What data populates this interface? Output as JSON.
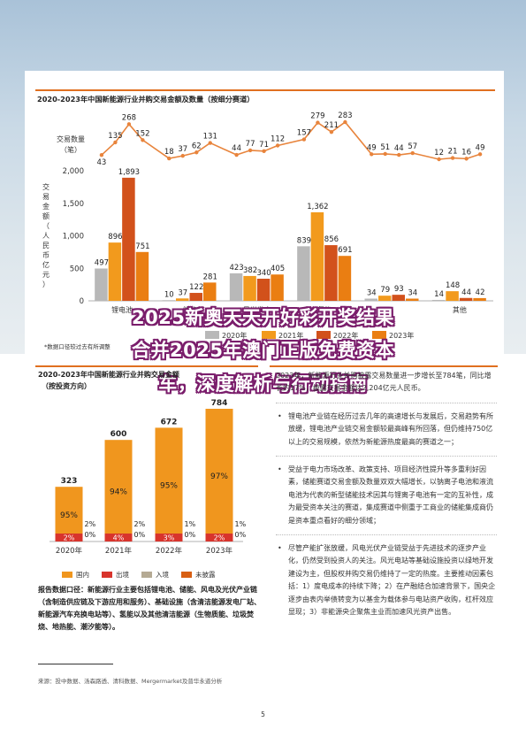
{
  "page": {
    "overlay_line1": "2025新奥天天开好彩开奖结果",
    "overlay_line2": "合并2025年澳门正版免费资本",
    "overlay_line3": "车，深度解析与行动指南",
    "page_number": "5"
  },
  "colors": {
    "grey": "#b8b8b8",
    "orange": "#f29a1d",
    "red": "#d2511b",
    "dark_orange": "#ea7e12",
    "bar_orange": "#f0951e",
    "domestic_orange": "#f0961e",
    "outbound_red": "#d8342c",
    "inbound_grey": "#b5aa94",
    "undisclosed_orange": "#d85f13",
    "count_line": "#e8843c"
  },
  "chart_data": [
    {
      "type": "bar",
      "title": "2020-2023年中国新能源行业并购交易金额及数量（按细分赛道）",
      "count_label": "交易数量（笔）",
      "ylabel": "交易金额（人民币亿元）",
      "ylim": [
        0,
        2000
      ],
      "yticks": [
        "0",
        "500",
        "1,000",
        "1,500",
        "2,000"
      ],
      "categories": [
        "锂电池",
        "储能",
        "风光发电",
        "氢能",
        "",
        "其他"
      ],
      "series": [
        {
          "name": "2020年",
          "values": [
            497,
            10,
            423,
            839,
            34,
            14
          ]
        },
        {
          "name": "2021年",
          "values": [
            896,
            37,
            382,
            1362,
            79,
            148
          ]
        },
        {
          "name": "2022年",
          "values": [
            1893,
            122,
            340,
            856,
            93,
            44
          ]
        },
        {
          "name": "2023年",
          "values": [
            751,
            281,
            405,
            691,
            34,
            42
          ]
        }
      ],
      "counts": [
        43,
        135,
        268,
        152,
        18,
        37,
        62,
        131,
        44,
        77,
        71,
        112,
        157,
        279,
        211,
        283,
        49,
        51,
        44,
        57,
        12,
        21,
        16,
        49
      ],
      "note": "*数据口径较过去有所调整"
    },
    {
      "type": "bar",
      "title": "2020-2023年中国新能源行业并购交易金额",
      "title_line2": "（按投资方向）",
      "categories": [
        "2020年",
        "2021年",
        "2022年",
        "2023年"
      ],
      "totals": [
        323,
        600,
        672,
        784
      ],
      "series": [
        {
          "name": "国内",
          "pct": [
            "95%",
            "94%",
            "95%",
            "97%"
          ]
        },
        {
          "name": "出境",
          "pct": [
            "2%",
            "4%",
            "3%",
            "2%"
          ]
        },
        {
          "name": "入境",
          "pct": [
            "2%",
            "2%",
            "1%",
            "1%"
          ]
        },
        {
          "name": "未披露",
          "pct": [
            "0%",
            "0%",
            "0%",
            "0%"
          ]
        }
      ]
    }
  ],
  "text": {
    "intro": "2023年，新能源行业并购披露交易数量进一步增长至784笔，同比增长约17%，披露交易金额达2,204亿元人民币。",
    "bullets": [
      "锂电池产业链在经历过去几年的高速增长与发展后，交易趋势有所放缓，锂电池产业链交易金额较最高峰有所回落，但仍维持750亿以上的交易规模，依然为新能源热度最高的赛道之一；",
      "受益于电力市场改革、政策支持、项目经济性提升等多重利好因素，储能赛道交易金额及数量双双大幅增长，以钠离子电池和液流电池为代表的新型储能技术因其与锂离子电池有一定的互补性，成为最受资本关注的赛道，集成赛道中侧重于工商业的储能集成商仍是资本重点看好的细分领域；",
      "尽管产能扩张放缓，风电光伏产业链受益于先进技术的逐步产业化，仍然受到投资人的关注。风光电站等基础设施投资以绿地开发建设为主，但股权并购交易仍维持了一定的热度。主要推动因素包括：1）度电成本的持续下降；2）在产融结合加速背景下，国央企逐步由表内举债转变为以基金为载体参与电站资产收购，杠杆效应显现；3）非能源央企聚焦主业而加速风光资产出售。"
    ],
    "caliber": "报告数据口径：新能源行业主要包括锂电池、储能、风电及光伏产业链（含制造供应链及下游应用和服务）、基础设施（含清洁能源发电厂站、新能源汽车充换电站等）、氢能以及其他清洁能源（生物质能、垃圾焚烧、地热能、潮汐能等）。",
    "source": "来源：投中数据、汤森路透、清科数据、Mergermarket及普华永道分析"
  }
}
